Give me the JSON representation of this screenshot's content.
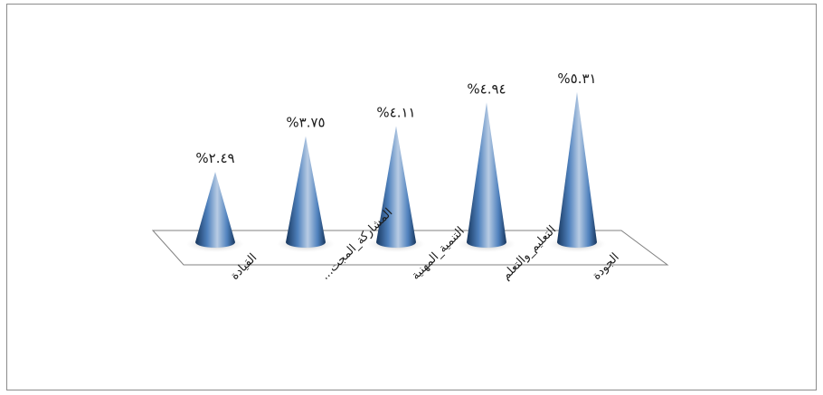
{
  "chart_data": {
    "type": "bar",
    "style": "3d-cone",
    "categories": [
      "القيادة",
      "المشاركة_المجتمعية",
      "التنمية_المهنية",
      "التعليم_والتعلم",
      "الجودة"
    ],
    "category_labels": [
      "القيادة",
      "المشاركة_المجت...",
      "التنمية_المهنية",
      "التعليم_والتعلم",
      "الجودة"
    ],
    "values": [
      2.49,
      3.75,
      4.11,
      4.94,
      5.31
    ],
    "value_labels": [
      "%٢.٤٩",
      "%٣.٧٥",
      "%٤.١١",
      "%٤.٩٤",
      "%٥.٣١"
    ],
    "ylim": [
      0,
      6
    ],
    "grid": false,
    "legend": "none",
    "colors": {
      "cone_dark": "#17365d",
      "cone_mid": "#4f81bd",
      "cone_light": "#b8cce4",
      "floor_stroke": "#808080"
    }
  }
}
